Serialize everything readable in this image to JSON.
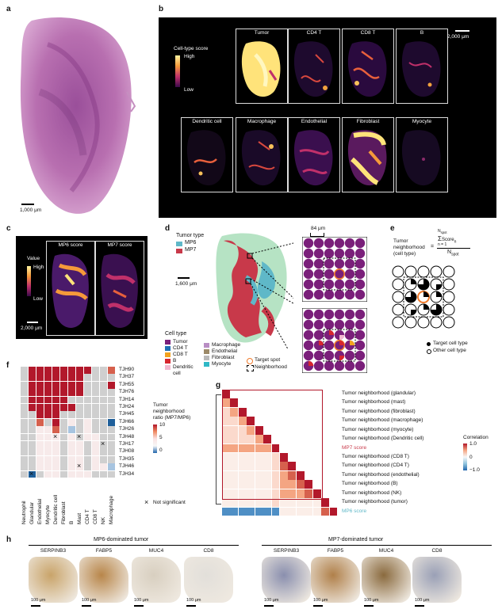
{
  "panels": {
    "a": "a",
    "b": "b",
    "c": "c",
    "d": "d",
    "e": "e",
    "f": "f",
    "g": "g",
    "h": "h"
  },
  "panel_a": {
    "scalebar": "1,000 μm"
  },
  "panel_b": {
    "legend_title": "Cell-type score",
    "legend_high": "High",
    "legend_low": "Low",
    "scalebar": "2,000 μm",
    "tiles": [
      "Tumor",
      "CD4 T",
      "CD8 T",
      "B",
      "Dendritic cell",
      "Macrophage",
      "Endothelial",
      "Fibroblast",
      "Myocyte"
    ],
    "colors": {
      "high": "#fff3a0",
      "mid": "#e8603c",
      "low": "#2a0a4a",
      "bg": "#000000"
    }
  },
  "panel_c": {
    "legend_title": "Value",
    "legend_high": "High",
    "legend_low": "Low",
    "scalebar": "2,000 μm",
    "tiles": [
      "MP6 score",
      "MP7 score"
    ]
  },
  "panel_d": {
    "tumor_type_title": "Tumor type",
    "tumor_types": [
      {
        "label": "MP6",
        "color": "#5fb8c8"
      },
      {
        "label": "MP7",
        "color": "#c8394a"
      }
    ],
    "scalebar": "1,600 μm",
    "zoom_scale": "84 μm",
    "cell_type_title": "Cell type",
    "cell_types": [
      {
        "label": "Tumor",
        "color": "#7a1f7a"
      },
      {
        "label": "CD4 T",
        "color": "#1f6fb4"
      },
      {
        "label": "CD8 T",
        "color": "#f2a21e"
      },
      {
        "label": "B",
        "color": "#d7262e"
      },
      {
        "label": "Dendritic cell",
        "color": "#f2b8cf"
      },
      {
        "label": "Macrophage",
        "color": "#b98ec4"
      },
      {
        "label": "Endothelial",
        "color": "#9c8a68"
      },
      {
        "label": "Fibroblast",
        "color": "#b9b9b9"
      },
      {
        "label": "Myocyte",
        "color": "#2fb8c6"
      }
    ],
    "target_spot": "Target spot",
    "neighborhood": "Neighborhood"
  },
  "panel_e": {
    "formula_left_1": "Tumor",
    "formula_left_2": "neighborhood",
    "formula_left_3": "(cell type)",
    "formula_eq": "=",
    "formula_num_top": "N",
    "formula_num_top_sub": "spot",
    "formula_num": "Σ",
    "formula_num_idx": "n = 1",
    "formula_num_rest": "Score",
    "formula_num_sub": "n",
    "formula_den": "N",
    "formula_den_sub": "spot",
    "legend_target": "Target cell type",
    "legend_other": "Other cell type"
  },
  "panel_f": {
    "rows": [
      "TJH90",
      "TJH37",
      "TJH55",
      "TJH76",
      "TJH14",
      "TJH24",
      "TJH45",
      "TJH66",
      "TJH26",
      "TJH48",
      "TJH17",
      "TJH08",
      "TJH35",
      "TJH46",
      "TJH34"
    ],
    "cols": [
      "Neutrophil",
      "Glandular",
      "Endothelial",
      "Myocyte",
      "Dendritic cell",
      "Fibroblast",
      "B",
      "Mast",
      "CD4 T",
      "CD8 T",
      "NK",
      "Macrophage"
    ],
    "legend_title_1": "Tumor",
    "legend_title_2": "neighborhood",
    "legend_title_3": "ratio (MP7/MP6)",
    "legend_ticks": [
      "10",
      "5",
      "0"
    ],
    "not_significant": "Not significant"
  },
  "panel_g": {
    "rows": [
      "Tumor neighborhood (glandular)",
      "Tumor neighborhood (mast)",
      "Tumor neighborhood (fibroblast)",
      "Tumor neighborhood (macrophage)",
      "Tumor neighborhood (myocyte)",
      "Tumor neighborhood (Dendritic cell)",
      "MP7 score",
      "Tumor neighborhood (CD8 T)",
      "Tumor neighborhood (CD4 T)",
      "Tumor neighborhood (endothelial)",
      "Tumor neighborhood (B)",
      "Tumor neighborhood (NK)",
      "Tumor neighborhood (tumor)",
      "MP6 score"
    ],
    "legend_title": "Correlation",
    "legend_ticks": [
      "1.0",
      "0",
      "−1.0"
    ],
    "colors": {
      "mp7": "#c8394a",
      "mp6": "#5fb8c8"
    }
  },
  "panel_h": {
    "group_left": "MP6-dominated tumor",
    "group_right": "MP7-dominated tumor",
    "stains_left": [
      "SERPINB3",
      "FABP5",
      "MUC4",
      "CD8"
    ],
    "stains_right": [
      "SERPINB3",
      "FABP5",
      "MUC4",
      "CD8"
    ],
    "scalebar": "100 μm"
  }
}
